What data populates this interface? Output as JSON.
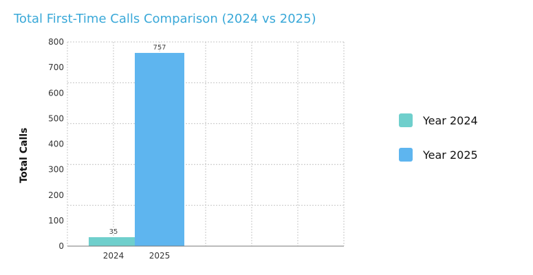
{
  "chart_data": {
    "type": "bar",
    "title": "Total First-Time Calls Comparison (2024 vs 2025)",
    "ylabel": "Total Calls",
    "xlabel": "",
    "categories": [
      "2024",
      "2025"
    ],
    "values": [
      35,
      757
    ],
    "value_labels": [
      "35",
      "757"
    ],
    "colors": [
      "#6fcfcc",
      "#5eb5ef"
    ],
    "ylim": [
      0,
      800
    ],
    "yticks": [
      0,
      100,
      200,
      300,
      400,
      500,
      600,
      700,
      800
    ],
    "ytick_labels": [
      "0",
      "100",
      "200",
      "300",
      "400",
      "500",
      "600",
      "700",
      "800"
    ],
    "grid": true,
    "legend_position": "right",
    "legend": [
      {
        "label": "Year 2024",
        "color": "#6fcfcc"
      },
      {
        "label": "Year 2025",
        "color": "#5eb5ef"
      }
    ]
  }
}
